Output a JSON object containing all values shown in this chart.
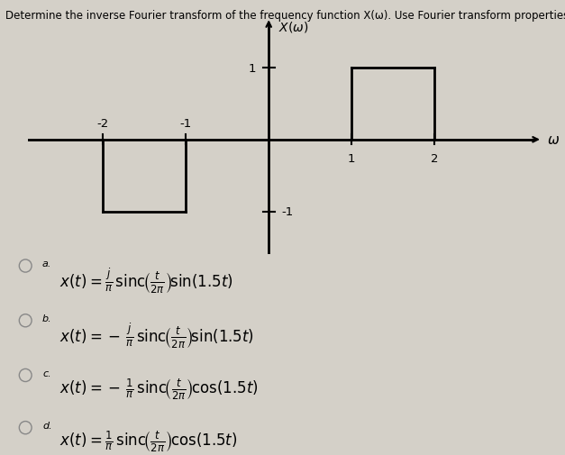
{
  "title": "Determine the inverse Fourier transform of the frequency function X(ω). Use Fourier transform properties a",
  "background_color": "#d4d0c8",
  "plot_bg_color": "#ffffff",
  "line_color": "#000000",
  "graph_border_color": "#aaaaaa",
  "options_formulas": [
    [
      "a.",
      "x(t) = \\frac{j}{\\pi}\\,\\mathrm{sinc}\\!\\left(\\frac{t}{2\\pi}\\right)\\!\\sin(1.5t)"
    ],
    [
      "b.",
      "x(t) = -\\,\\frac{j}{\\pi}\\,\\mathrm{sinc}\\!\\left(\\frac{t}{2\\pi}\\right)\\!\\sin(1.5t)"
    ],
    [
      "c.",
      "x(t) = -\\,\\frac{1}{\\pi}\\,\\mathrm{sinc}\\!\\left(\\frac{t}{2\\pi}\\right)\\!\\cos(1.5t)"
    ],
    [
      "d.",
      "x(t) = \\frac{1}{\\pi}\\,\\mathrm{sinc}\\!\\left(\\frac{t}{2\\pi}\\right)\\!\\cos(1.5t)"
    ]
  ],
  "xlim": [
    -2.9,
    3.3
  ],
  "ylim": [
    -1.6,
    1.7
  ],
  "pulse_bottom": [
    [
      -2,
      -1
    ],
    -1
  ],
  "pulse_top": [
    [
      1,
      2
    ],
    1
  ],
  "xtick_vals": [
    -2,
    -1,
    1,
    2
  ],
  "ytick_vals": [
    -1,
    1
  ],
  "tick_size": 0.07
}
